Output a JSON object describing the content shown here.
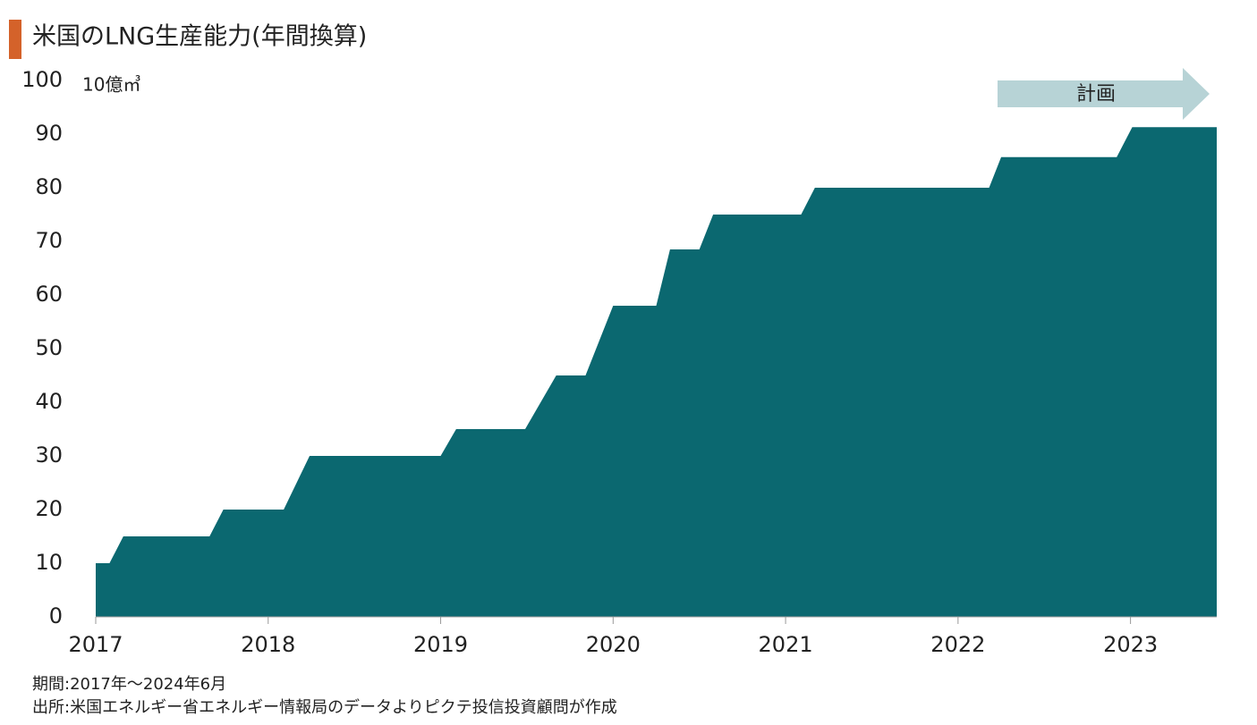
{
  "chart_data": {
    "type": "area",
    "title": "米国のLNG生産能力(年間換算)",
    "y_unit": "10億㎥",
    "annotation": "計画",
    "notes": [
      "期間:2017年～2024年6月",
      "出所:米国エネルギー省エネルギー情報局のデータよりピクテ投信投資顧問が作成"
    ],
    "color": "#0b6870",
    "x": [
      2017.0,
      2017.08,
      2017.16,
      2017.66,
      2017.74,
      2018.09,
      2018.24,
      2019.0,
      2019.09,
      2019.49,
      2019.67,
      2019.84,
      2020.0,
      2020.25,
      2020.33,
      2020.5,
      2020.58,
      2021.09,
      2021.17,
      2022.18,
      2022.25,
      2022.92,
      2023.01,
      2023.5
    ],
    "values": [
      10,
      10,
      15,
      15,
      20,
      20,
      30,
      30,
      35,
      35,
      45,
      45,
      58,
      58,
      68.5,
      68.5,
      75,
      75,
      80,
      80,
      85.7,
      85.7,
      91.3,
      91.3
    ],
    "xlim": [
      2017,
      2023.5
    ],
    "xticks": [
      2017,
      2018,
      2019,
      2020,
      2021,
      2022,
      2023
    ],
    "ylim": [
      0,
      100
    ],
    "yticks": [
      0,
      10,
      20,
      30,
      40,
      50,
      60,
      70,
      80,
      90,
      100
    ],
    "grid": false
  }
}
